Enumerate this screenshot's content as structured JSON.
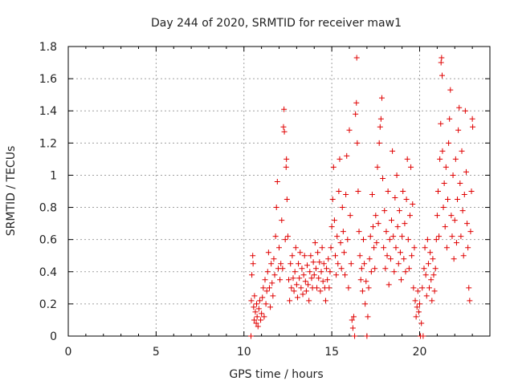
{
  "chart_data": {
    "type": "scatter",
    "title": "Day 244 of 2020, SRMTID for receiver maw1",
    "xlabel": "GPS time / hours",
    "ylabel": "SRMTID / TECUs",
    "xlim": [
      0,
      24
    ],
    "ylim": [
      0,
      1.8
    ],
    "xticks": [
      0,
      5,
      10,
      15,
      20
    ],
    "yticks": [
      0,
      0.2,
      0.4,
      0.6,
      0.8,
      1.0,
      1.2,
      1.4,
      1.6,
      1.8
    ],
    "xtick_labels": [
      "0",
      "5",
      "10",
      "15",
      "20"
    ],
    "ytick_labels": [
      "0",
      "0.2",
      "0.4",
      "0.6",
      "0.8",
      "1",
      "1.2",
      "1.4",
      "1.6",
      "1.8"
    ],
    "grid": true,
    "marker": "+",
    "series": [
      {
        "name": "SRMTID",
        "color": "#e00000",
        "points": [
          [
            10.4,
            0.0
          ],
          [
            10.42,
            0.22
          ],
          [
            10.45,
            0.38
          ],
          [
            10.5,
            0.5
          ],
          [
            10.52,
            0.45
          ],
          [
            10.55,
            0.18
          ],
          [
            10.58,
            0.1
          ],
          [
            10.6,
            0.25
          ],
          [
            10.65,
            0.15
          ],
          [
            10.7,
            0.08
          ],
          [
            10.72,
            0.2
          ],
          [
            10.75,
            0.12
          ],
          [
            10.8,
            0.06
          ],
          [
            10.85,
            0.17
          ],
          [
            10.9,
            0.22
          ],
          [
            10.95,
            0.1
          ],
          [
            11.0,
            0.14
          ],
          [
            11.05,
            0.24
          ],
          [
            11.1,
            0.3
          ],
          [
            11.15,
            0.12
          ],
          [
            11.2,
            0.35
          ],
          [
            11.25,
            0.2
          ],
          [
            11.3,
            0.28
          ],
          [
            11.35,
            0.4
          ],
          [
            11.4,
            0.52
          ],
          [
            11.45,
            0.3
          ],
          [
            11.5,
            0.18
          ],
          [
            11.55,
            0.45
          ],
          [
            11.6,
            0.33
          ],
          [
            11.65,
            0.25
          ],
          [
            11.7,
            0.48
          ],
          [
            11.75,
            0.38
          ],
          [
            11.8,
            0.62
          ],
          [
            11.85,
            0.8
          ],
          [
            11.9,
            0.96
          ],
          [
            11.95,
            0.42
          ],
          [
            12.0,
            0.55
          ],
          [
            12.05,
            0.35
          ],
          [
            12.1,
            0.45
          ],
          [
            12.15,
            0.72
          ],
          [
            12.2,
            0.42
          ],
          [
            12.25,
            1.3
          ],
          [
            12.28,
            1.41
          ],
          [
            12.3,
            1.27
          ],
          [
            12.35,
            0.6
          ],
          [
            12.4,
            1.05
          ],
          [
            12.42,
            1.1
          ],
          [
            12.45,
            0.85
          ],
          [
            12.5,
            0.62
          ],
          [
            12.55,
            0.35
          ],
          [
            12.6,
            0.22
          ],
          [
            12.65,
            0.45
          ],
          [
            12.7,
            0.3
          ],
          [
            12.75,
            0.5
          ],
          [
            12.8,
            0.36
          ],
          [
            12.85,
            0.28
          ],
          [
            12.9,
            0.4
          ],
          [
            12.95,
            0.55
          ],
          [
            13.0,
            0.32
          ],
          [
            13.05,
            0.24
          ],
          [
            13.1,
            0.45
          ],
          [
            13.15,
            0.36
          ],
          [
            13.2,
            0.52
          ],
          [
            13.25,
            0.3
          ],
          [
            13.3,
            0.42
          ],
          [
            13.35,
            0.26
          ],
          [
            13.4,
            0.38
          ],
          [
            13.45,
            0.5
          ],
          [
            13.5,
            0.34
          ],
          [
            13.55,
            0.28
          ],
          [
            13.6,
            0.44
          ],
          [
            13.65,
            0.32
          ],
          [
            13.7,
            0.22
          ],
          [
            13.75,
            0.4
          ],
          [
            13.8,
            0.5
          ],
          [
            13.85,
            0.36
          ],
          [
            13.9,
            0.3
          ],
          [
            13.95,
            0.46
          ],
          [
            14.0,
            0.38
          ],
          [
            14.05,
            0.58
          ],
          [
            14.1,
            0.42
          ],
          [
            14.15,
            0.3
          ],
          [
            14.2,
            0.52
          ],
          [
            14.25,
            0.36
          ],
          [
            14.3,
            0.46
          ],
          [
            14.35,
            0.28
          ],
          [
            14.4,
            0.4
          ],
          [
            14.45,
            0.55
          ],
          [
            14.5,
            0.34
          ],
          [
            14.55,
            0.45
          ],
          [
            14.6,
            0.3
          ],
          [
            14.65,
            0.22
          ],
          [
            14.7,
            0.42
          ],
          [
            14.75,
            0.35
          ],
          [
            14.8,
            0.48
          ],
          [
            14.85,
            0.3
          ],
          [
            14.9,
            0.4
          ],
          [
            14.95,
            0.55
          ],
          [
            15.0,
            0.68
          ],
          [
            15.05,
            0.85
          ],
          [
            15.1,
            1.05
          ],
          [
            15.15,
            0.72
          ],
          [
            15.2,
            0.5
          ],
          [
            15.25,
            0.38
          ],
          [
            15.3,
            0.62
          ],
          [
            15.35,
            0.45
          ],
          [
            15.4,
            0.9
          ],
          [
            15.45,
            1.1
          ],
          [
            15.5,
            0.58
          ],
          [
            15.55,
            0.42
          ],
          [
            15.6,
            0.8
          ],
          [
            15.65,
            0.65
          ],
          [
            15.7,
            0.52
          ],
          [
            15.75,
            0.38
          ],
          [
            15.8,
            0.88
          ],
          [
            15.85,
            1.12
          ],
          [
            15.9,
            0.6
          ],
          [
            15.95,
            0.3
          ],
          [
            16.0,
            1.28
          ],
          [
            16.05,
            0.75
          ],
          [
            16.1,
            0.45
          ],
          [
            16.15,
            0.1
          ],
          [
            16.2,
            0.05
          ],
          [
            16.25,
            0.12
          ],
          [
            16.3,
            0.0
          ],
          [
            16.35,
            1.38
          ],
          [
            16.4,
            1.45
          ],
          [
            16.42,
            1.73
          ],
          [
            16.45,
            1.2
          ],
          [
            16.5,
            0.9
          ],
          [
            16.55,
            0.65
          ],
          [
            16.6,
            0.5
          ],
          [
            16.65,
            0.35
          ],
          [
            16.7,
            0.42
          ],
          [
            16.75,
            0.28
          ],
          [
            16.8,
            0.6
          ],
          [
            16.85,
            0.45
          ],
          [
            16.9,
            0.2
          ],
          [
            16.95,
            0.34
          ],
          [
            17.0,
            0.0
          ],
          [
            17.05,
            0.12
          ],
          [
            17.1,
            0.3
          ],
          [
            17.15,
            0.48
          ],
          [
            17.2,
            0.62
          ],
          [
            17.25,
            0.4
          ],
          [
            17.3,
            0.88
          ],
          [
            17.35,
            0.68
          ],
          [
            17.4,
            0.55
          ],
          [
            17.45,
            0.42
          ],
          [
            17.5,
            0.75
          ],
          [
            17.55,
            0.58
          ],
          [
            17.6,
            1.05
          ],
          [
            17.65,
            0.7
          ],
          [
            17.7,
            1.2
          ],
          [
            17.75,
            1.3
          ],
          [
            17.8,
            1.35
          ],
          [
            17.85,
            1.48
          ],
          [
            17.9,
            0.98
          ],
          [
            17.95,
            0.55
          ],
          [
            18.0,
            0.78
          ],
          [
            18.05,
            0.42
          ],
          [
            18.1,
            0.65
          ],
          [
            18.15,
            0.5
          ],
          [
            18.2,
            0.9
          ],
          [
            18.25,
            0.32
          ],
          [
            18.3,
            0.6
          ],
          [
            18.35,
            0.48
          ],
          [
            18.4,
            0.72
          ],
          [
            18.45,
            1.15
          ],
          [
            18.5,
            0.62
          ],
          [
            18.55,
            0.4
          ],
          [
            18.6,
            0.86
          ],
          [
            18.65,
            0.55
          ],
          [
            18.7,
            1.0
          ],
          [
            18.75,
            0.68
          ],
          [
            18.8,
            0.45
          ],
          [
            18.85,
            0.78
          ],
          [
            18.9,
            0.52
          ],
          [
            18.95,
            0.35
          ],
          [
            19.0,
            0.62
          ],
          [
            19.05,
            0.9
          ],
          [
            19.1,
            0.48
          ],
          [
            19.15,
            0.7
          ],
          [
            19.2,
            0.4
          ],
          [
            19.25,
            0.85
          ],
          [
            19.3,
            1.1
          ],
          [
            19.35,
            0.6
          ],
          [
            19.4,
            0.42
          ],
          [
            19.45,
            0.75
          ],
          [
            19.5,
            1.05
          ],
          [
            19.55,
            0.5
          ],
          [
            19.6,
            0.82
          ],
          [
            19.65,
            0.3
          ],
          [
            19.7,
            0.55
          ],
          [
            19.75,
            0.22
          ],
          [
            19.8,
            0.12
          ],
          [
            19.85,
            0.18
          ],
          [
            19.9,
            0.28
          ],
          [
            19.95,
            0.15
          ],
          [
            20.0,
            0.2
          ],
          [
            20.05,
            0.0
          ],
          [
            20.1,
            0.08
          ],
          [
            20.15,
            0.3
          ],
          [
            20.2,
            0.0
          ],
          [
            20.25,
            0.42
          ],
          [
            20.3,
            0.55
          ],
          [
            20.35,
            0.38
          ],
          [
            20.4,
            0.25
          ],
          [
            20.45,
            0.6
          ],
          [
            20.5,
            0.45
          ],
          [
            20.55,
            0.3
          ],
          [
            20.6,
            0.52
          ],
          [
            20.65,
            0.35
          ],
          [
            20.7,
            0.22
          ],
          [
            20.75,
            0.48
          ],
          [
            20.8,
            0.38
          ],
          [
            20.85,
            0.28
          ],
          [
            20.9,
            0.42
          ],
          [
            20.95,
            0.6
          ],
          [
            21.0,
            0.75
          ],
          [
            21.05,
            0.9
          ],
          [
            21.1,
            0.62
          ],
          [
            21.15,
            1.1
          ],
          [
            21.2,
            1.32
          ],
          [
            21.22,
            1.7
          ],
          [
            21.25,
            1.73
          ],
          [
            21.28,
            1.62
          ],
          [
            21.3,
            1.15
          ],
          [
            21.35,
            0.8
          ],
          [
            21.4,
            0.95
          ],
          [
            21.45,
            0.68
          ],
          [
            21.5,
            1.05
          ],
          [
            21.55,
            0.55
          ],
          [
            21.6,
            0.85
          ],
          [
            21.65,
            1.2
          ],
          [
            21.7,
            1.35
          ],
          [
            21.75,
            1.53
          ],
          [
            21.8,
            0.75
          ],
          [
            21.85,
            0.62
          ],
          [
            21.9,
            1.0
          ],
          [
            21.95,
            0.48
          ],
          [
            22.0,
            0.72
          ],
          [
            22.05,
            1.1
          ],
          [
            22.1,
            0.58
          ],
          [
            22.15,
            0.85
          ],
          [
            22.2,
            1.28
          ],
          [
            22.25,
            1.42
          ],
          [
            22.3,
            0.95
          ],
          [
            22.35,
            0.62
          ],
          [
            22.4,
            1.15
          ],
          [
            22.45,
            0.78
          ],
          [
            22.5,
            0.5
          ],
          [
            22.55,
            0.88
          ],
          [
            22.6,
            1.4
          ],
          [
            22.65,
            1.02
          ],
          [
            22.7,
            0.7
          ],
          [
            22.75,
            0.55
          ],
          [
            22.8,
            0.3
          ],
          [
            22.85,
            0.22
          ],
          [
            22.9,
            0.65
          ],
          [
            22.95,
            0.9
          ],
          [
            23.0,
            1.35
          ],
          [
            23.02,
            1.3
          ]
        ]
      }
    ]
  }
}
